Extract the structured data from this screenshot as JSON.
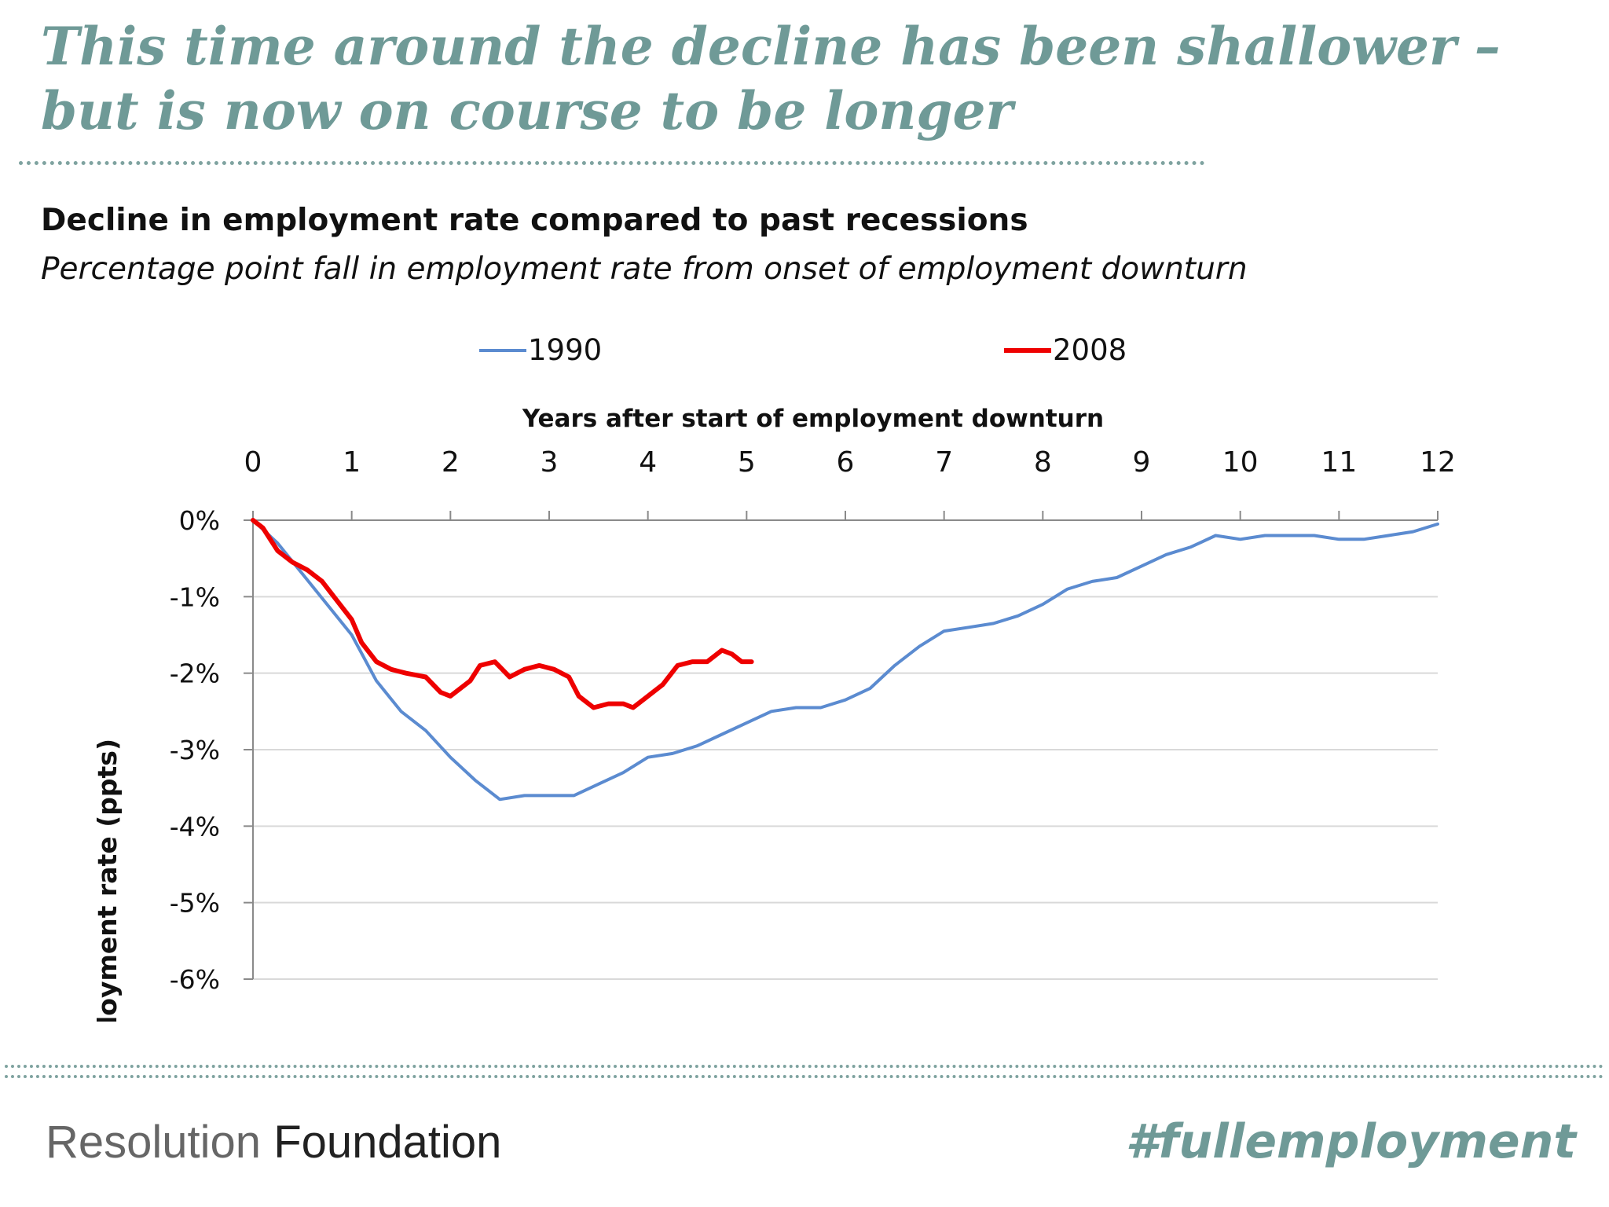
{
  "slide": {
    "title": "This time around the decline has been shallower – but is now on course to be longer",
    "logo_part1": "Resolution",
    "logo_part2": "Foundation",
    "hashtag": "#fullemployment"
  },
  "colors": {
    "accent": "#6f9a97",
    "series_1990": "#5b8bd0",
    "series_2008": "#ee0000",
    "grid": "#d9d9d9",
    "axis": "#8a8a8a"
  },
  "chart_data": {
    "type": "line",
    "title": "Decline in employment rate compared to past recessions",
    "subtitle": "Percentage point fall in employment rate from onset of employment downturn",
    "xlabel": "Years after start of employment downturn",
    "ylabel": "Decline in employment rate (ppts)",
    "xlim": [
      0,
      12
    ],
    "ylim": [
      -6,
      0
    ],
    "x_ticks": [
      0,
      1,
      2,
      3,
      4,
      5,
      6,
      7,
      8,
      9,
      10,
      11,
      12
    ],
    "x_tick_labels": [
      "0",
      "1",
      "2",
      "3",
      "4",
      "5",
      "6",
      "7",
      "8",
      "9",
      "10",
      "11",
      "12"
    ],
    "y_ticks": [
      0,
      -1,
      -2,
      -3,
      -4,
      -5,
      -6
    ],
    "y_tick_labels": [
      "0%",
      "-1%",
      "-2%",
      "-3%",
      "-4%",
      "-5%",
      "-6%"
    ],
    "legend_position": "top",
    "series": [
      {
        "name": "1990",
        "points": [
          [
            0,
            0
          ],
          [
            0.25,
            -0.3
          ],
          [
            0.5,
            -0.7
          ],
          [
            1,
            -1.5
          ],
          [
            1.25,
            -2.1
          ],
          [
            1.5,
            -2.5
          ],
          [
            1.75,
            -2.75
          ],
          [
            2,
            -3.1
          ],
          [
            2.25,
            -3.4
          ],
          [
            2.5,
            -3.65
          ],
          [
            2.75,
            -3.6
          ],
          [
            3,
            -3.6
          ],
          [
            3.25,
            -3.6
          ],
          [
            3.5,
            -3.45
          ],
          [
            3.75,
            -3.3
          ],
          [
            4,
            -3.1
          ],
          [
            4.25,
            -3.05
          ],
          [
            4.5,
            -2.95
          ],
          [
            4.75,
            -2.8
          ],
          [
            5,
            -2.65
          ],
          [
            5.25,
            -2.5
          ],
          [
            5.5,
            -2.45
          ],
          [
            5.75,
            -2.45
          ],
          [
            6,
            -2.35
          ],
          [
            6.25,
            -2.2
          ],
          [
            6.5,
            -1.9
          ],
          [
            6.75,
            -1.65
          ],
          [
            7,
            -1.45
          ],
          [
            7.25,
            -1.4
          ],
          [
            7.5,
            -1.35
          ],
          [
            7.75,
            -1.25
          ],
          [
            8,
            -1.1
          ],
          [
            8.25,
            -0.9
          ],
          [
            8.5,
            -0.8
          ],
          [
            8.75,
            -0.75
          ],
          [
            9,
            -0.6
          ],
          [
            9.25,
            -0.45
          ],
          [
            9.5,
            -0.35
          ],
          [
            9.75,
            -0.2
          ],
          [
            10,
            -0.25
          ],
          [
            10.25,
            -0.2
          ],
          [
            10.5,
            -0.2
          ],
          [
            10.75,
            -0.2
          ],
          [
            11,
            -0.25
          ],
          [
            11.25,
            -0.25
          ],
          [
            11.5,
            -0.2
          ],
          [
            11.75,
            -0.15
          ],
          [
            12,
            -0.05
          ]
        ]
      },
      {
        "name": "2008",
        "points": [
          [
            0,
            0
          ],
          [
            0.1,
            -0.1
          ],
          [
            0.25,
            -0.4
          ],
          [
            0.4,
            -0.55
          ],
          [
            0.55,
            -0.65
          ],
          [
            0.7,
            -0.8
          ],
          [
            0.85,
            -1.05
          ],
          [
            1,
            -1.3
          ],
          [
            1.1,
            -1.6
          ],
          [
            1.25,
            -1.85
          ],
          [
            1.4,
            -1.95
          ],
          [
            1.55,
            -2.0
          ],
          [
            1.75,
            -2.05
          ],
          [
            1.9,
            -2.25
          ],
          [
            2,
            -2.3
          ],
          [
            2.1,
            -2.2
          ],
          [
            2.2,
            -2.1
          ],
          [
            2.3,
            -1.9
          ],
          [
            2.45,
            -1.85
          ],
          [
            2.6,
            -2.05
          ],
          [
            2.75,
            -1.95
          ],
          [
            2.9,
            -1.9
          ],
          [
            3.05,
            -1.95
          ],
          [
            3.2,
            -2.05
          ],
          [
            3.3,
            -2.3
          ],
          [
            3.45,
            -2.45
          ],
          [
            3.6,
            -2.4
          ],
          [
            3.75,
            -2.4
          ],
          [
            3.85,
            -2.45
          ],
          [
            4,
            -2.3
          ],
          [
            4.15,
            -2.15
          ],
          [
            4.3,
            -1.9
          ],
          [
            4.45,
            -1.85
          ],
          [
            4.6,
            -1.85
          ],
          [
            4.75,
            -1.7
          ],
          [
            4.85,
            -1.75
          ],
          [
            4.95,
            -1.85
          ],
          [
            5.05,
            -1.85
          ]
        ]
      }
    ]
  }
}
